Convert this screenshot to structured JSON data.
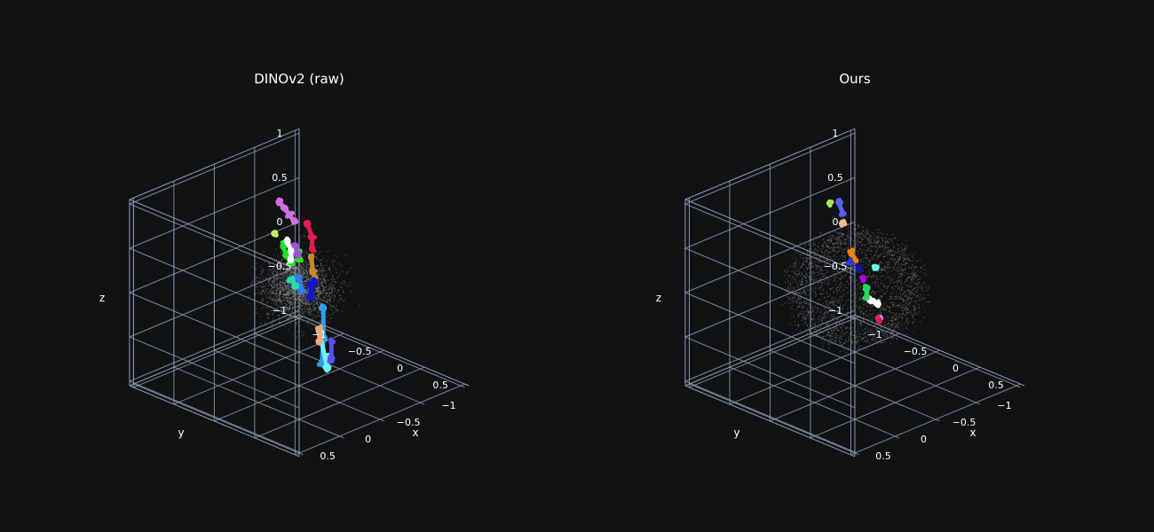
{
  "chart_data": [
    {
      "type": "scatter3d",
      "title": "DINOv2 (raw)",
      "xlabel": "x",
      "ylabel": "y",
      "zlabel": "z",
      "x_ticks": [
        "−1",
        "−0.5",
        "0",
        "0.5"
      ],
      "y_ticks": [
        "−1",
        "−0.5",
        "0",
        "0.5"
      ],
      "z_ticks": [
        "−1",
        "−0.5",
        "0",
        "0.5",
        "1"
      ],
      "xlim": [
        -1,
        1
      ],
      "ylim": [
        -1,
        1
      ],
      "zlim": [
        -1,
        1
      ],
      "grid": true,
      "cloud_color": "#8c8c8c",
      "clusters": [
        {
          "color": "#d070e0",
          "points": [
            [
              -0.55,
              -0.3,
              0.7
            ],
            [
              -0.48,
              -0.3,
              0.66
            ],
            [
              -0.4,
              -0.28,
              0.62
            ],
            [
              -0.32,
              -0.26,
              0.58
            ]
          ]
        },
        {
          "color": "#e8194f",
          "points": [
            [
              -0.25,
              -0.35,
              0.55
            ],
            [
              -0.22,
              -0.38,
              0.4
            ],
            [
              -0.24,
              -0.4,
              0.25
            ]
          ]
        },
        {
          "color": "#26e426",
          "points": [
            [
              -0.55,
              -0.55,
              0.05
            ],
            [
              -0.52,
              -0.52,
              -0.02
            ]
          ]
        },
        {
          "color": "#c88a2a",
          "points": [
            [
              0.05,
              -0.1,
              0.38
            ],
            [
              0.12,
              -0.05,
              0.28
            ],
            [
              0.2,
              0.0,
              0.22
            ]
          ]
        },
        {
          "color": "#a24fd8",
          "points": [
            [
              0.0,
              0.05,
              0.55
            ],
            [
              0.08,
              0.1,
              0.5
            ]
          ]
        },
        {
          "color": "#23e423",
          "points": [
            [
              0.25,
              0.45,
              0.8
            ],
            [
              0.32,
              0.48,
              0.72
            ],
            [
              0.35,
              0.45,
              0.64
            ]
          ]
        },
        {
          "color": "#ffffff",
          "points": [
            [
              0.05,
              0.2,
              0.68
            ],
            [
              0.15,
              0.25,
              0.62
            ],
            [
              0.25,
              0.35,
              0.6
            ]
          ]
        },
        {
          "color": "#2e7cff",
          "points": [
            [
              0.3,
              0.3,
              0.4
            ],
            [
              0.38,
              0.35,
              0.3
            ]
          ]
        },
        {
          "color": "#1414c8",
          "points": [
            [
              0.35,
              0.2,
              0.3
            ],
            [
              0.42,
              0.28,
              0.22
            ],
            [
              0.3,
              0.1,
              0.28
            ]
          ]
        },
        {
          "color": "#2f9ee8",
          "points": [
            [
              0.25,
              -0.05,
              -0.1
            ],
            [
              0.3,
              0.0,
              -0.4
            ],
            [
              0.28,
              0.0,
              -0.7
            ]
          ]
        },
        {
          "color": "#6ef2f2",
          "points": [
            [
              0.4,
              0.05,
              -0.55
            ],
            [
              0.45,
              0.1,
              -0.65
            ],
            [
              0.1,
              -0.15,
              -0.45
            ]
          ]
        },
        {
          "color": "#5a50f0",
          "points": [
            [
              0.8,
              0.4,
              -0.1
            ],
            [
              0.85,
              0.45,
              -0.25
            ]
          ]
        },
        {
          "color": "#f2a872",
          "points": [
            [
              0.8,
              0.55,
              0.1
            ],
            [
              0.85,
              0.6,
              0.0
            ]
          ]
        },
        {
          "color": "#22ddaa",
          "points": [
            [
              0.35,
              0.45,
              0.45
            ],
            [
              0.4,
              0.45,
              0.4
            ]
          ]
        },
        {
          "color": "#bbf55b",
          "points": [
            [
              0.1,
              0.4,
              0.85
            ]
          ]
        }
      ]
    },
    {
      "type": "scatter3d",
      "title": "Ours",
      "xlabel": "x",
      "ylabel": "y",
      "zlabel": "z",
      "x_ticks": [
        "−1",
        "−0.5",
        "0",
        "0.5"
      ],
      "y_ticks": [
        "−1",
        "−0.5",
        "0",
        "0.5"
      ],
      "z_ticks": [
        "−1",
        "−0.5",
        "0",
        "0.5",
        "1"
      ],
      "xlim": [
        -1,
        1
      ],
      "ylim": [
        -1,
        1
      ],
      "zlim": [
        -1,
        1
      ],
      "grid": true,
      "cloud_color": "#8c8c8c",
      "clusters": [
        {
          "color": "#a5e861",
          "points": [
            [
              -0.1,
              0.2,
              1.05
            ]
          ]
        },
        {
          "color": "#f7b98c",
          "points": [
            [
              -0.05,
              0.1,
              0.8
            ]
          ]
        },
        {
          "color": "#ff7f00",
          "points": [
            [
              0.3,
              0.35,
              0.7
            ],
            [
              0.4,
              0.4,
              0.68
            ]
          ]
        },
        {
          "color": "#2e3bd9",
          "points": [
            [
              0.45,
              0.5,
              0.7
            ]
          ]
        },
        {
          "color": "#5c5cf0",
          "points": [
            [
              -0.45,
              -0.25,
              0.75
            ],
            [
              -0.2,
              -0.05,
              0.8
            ]
          ]
        },
        {
          "color": "#b000e8",
          "points": [
            [
              0.3,
              0.2,
              0.35
            ]
          ]
        },
        {
          "color": "#ffffff",
          "points": [
            [
              0.35,
              0.15,
              0.1
            ],
            [
              0.38,
              0.1,
              0.05
            ]
          ]
        },
        {
          "color": "#d38ee8",
          "points": [
            [
              0.6,
              0.3,
              0.05
            ]
          ]
        },
        {
          "color": "#23d65c",
          "points": [
            [
              0.0,
              -0.15,
              0.0
            ],
            [
              0.2,
              0.05,
              0.05
            ]
          ]
        },
        {
          "color": "#1414a0",
          "points": [
            [
              0.0,
              -0.05,
              0.25
            ]
          ]
        },
        {
          "color": "#6ef0f0",
          "points": [
            [
              -0.45,
              -0.7,
              -0.15
            ]
          ]
        },
        {
          "color": "#e8194f",
          "points": [
            [
              -0.1,
              -0.4,
              -0.5
            ]
          ]
        }
      ]
    }
  ]
}
